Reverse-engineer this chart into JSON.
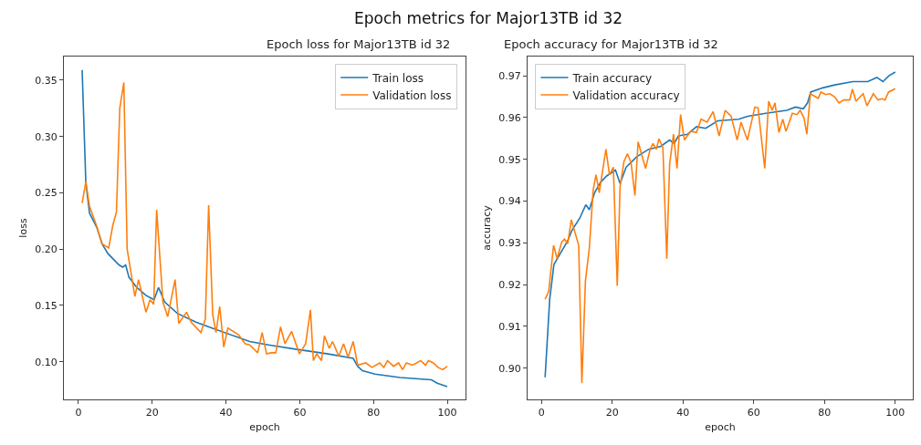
{
  "chart_data": [
    {
      "type": "line",
      "title": "Epoch loss for Major13TB id 32",
      "xlabel": "epoch",
      "ylabel": "loss",
      "annotations": [
        "Epoch metrics for Major13TB id 32"
      ],
      "series": [
        {
          "name": "Train loss",
          "color": "#1f77b4",
          "x": [
            1,
            2,
            3,
            5,
            6.5,
            8,
            11,
            12,
            12.8,
            13.7,
            15.8,
            18.3,
            20.5,
            21.7,
            23.4,
            26.8,
            32,
            36.2,
            43,
            46.4,
            51.5,
            59.2,
            67.7,
            74.5,
            75.7,
            77,
            80.4,
            87.2,
            95.7,
            97.3,
            100
          ],
          "values": [
            0.359,
            0.259,
            0.232,
            0.219,
            0.204,
            0.196,
            0.186,
            0.184,
            0.186,
            0.175,
            0.166,
            0.159,
            0.155,
            0.166,
            0.153,
            0.143,
            0.135,
            0.13,
            0.122,
            0.118,
            0.115,
            0.111,
            0.107,
            0.103,
            0.096,
            0.092,
            0.089,
            0.086,
            0.084,
            0.081,
            0.078
          ]
        },
        {
          "name": "Validation loss",
          "color": "#ff7f0e",
          "x": [
            1,
            2,
            3,
            5,
            6.3,
            8.2,
            9.3,
            10.3,
            11.2,
            12.3,
            13.2,
            15.3,
            16.3,
            18.3,
            19.4,
            20.4,
            21.2,
            22.9,
            24.2,
            26.2,
            27.2,
            29.3,
            30.6,
            33.2,
            34.4,
            35.3,
            36.4,
            37.3,
            38.3,
            39.4,
            40.5,
            43.4,
            45.2,
            46.4,
            48.6,
            49.8,
            51,
            52.2,
            53.5,
            54.8,
            56,
            57.8,
            59.9,
            61.6,
            62.9,
            63.7,
            64.6,
            65.9,
            66.7,
            68,
            68.9,
            70.6,
            71.9,
            73.1,
            74.5,
            75.7,
            77.9,
            79.6,
            81.7,
            82.8,
            83.8,
            85.4,
            86.8,
            87.9,
            88.9,
            90.6,
            92.8,
            94.1,
            94.9,
            96.2,
            97.5,
            98.8,
            100
          ],
          "values": [
            0.241,
            0.26,
            0.238,
            0.22,
            0.205,
            0.201,
            0.221,
            0.233,
            0.325,
            0.348,
            0.2,
            0.158,
            0.173,
            0.144,
            0.155,
            0.151,
            0.235,
            0.153,
            0.14,
            0.173,
            0.134,
            0.144,
            0.135,
            0.126,
            0.138,
            0.239,
            0.142,
            0.126,
            0.149,
            0.113,
            0.13,
            0.124,
            0.116,
            0.115,
            0.108,
            0.126,
            0.107,
            0.108,
            0.108,
            0.131,
            0.116,
            0.127,
            0.107,
            0.116,
            0.146,
            0.101,
            0.107,
            0.101,
            0.123,
            0.112,
            0.118,
            0.105,
            0.116,
            0.104,
            0.118,
            0.097,
            0.099,
            0.095,
            0.099,
            0.095,
            0.101,
            0.096,
            0.099,
            0.093,
            0.099,
            0.097,
            0.101,
            0.097,
            0.101,
            0.099,
            0.095,
            0.093,
            0.096
          ]
        }
      ],
      "xlim": [
        -3.95,
        104.95
      ],
      "xticks": [
        0,
        20,
        40,
        60,
        80,
        100
      ],
      "ylim": [
        0.0666,
        0.371
      ],
      "yticks": [
        {
          "value": 0.1,
          "label": "0.10"
        },
        0.15,
        {
          "value": 0.2,
          "label": "0.20"
        },
        0.25,
        {
          "value": 0.3,
          "label": "0.30"
        },
        0.35
      ],
      "legend": "top right",
      "marker": "none",
      "line_style": "solid"
    },
    {
      "type": "line",
      "title": "Epoch accuracy for Major13TB id 32",
      "xlabel": "epoch",
      "ylabel": "accuracy",
      "series": [
        {
          "name": "Train accuracy",
          "color": "#1f77b4",
          "x": [
            1,
            2.3,
            3.5,
            5.2,
            7.4,
            8.6,
            10.8,
            12.5,
            13.5,
            15,
            16.7,
            18.4,
            20.9,
            22.2,
            23.9,
            26.9,
            30.3,
            33.7,
            36.2,
            37.5,
            38.7,
            41.3,
            43.8,
            46.4,
            49.8,
            55.7,
            58.3,
            63.4,
            69.3,
            71.8,
            74,
            75.2,
            76.1,
            79.5,
            82.9,
            88,
            92.2,
            94.8,
            96.5,
            98.2,
            100
          ],
          "values": [
            0.8978,
            0.9165,
            0.9248,
            0.9273,
            0.9305,
            0.933,
            0.9359,
            0.9391,
            0.9379,
            0.942,
            0.9445,
            0.946,
            0.9474,
            0.9442,
            0.9481,
            0.9506,
            0.9524,
            0.9531,
            0.9546,
            0.9538,
            0.9556,
            0.956,
            0.9578,
            0.9574,
            0.9592,
            0.9596,
            0.9603,
            0.961,
            0.9617,
            0.9625,
            0.9621,
            0.9635,
            0.9661,
            0.9671,
            0.9678,
            0.9686,
            0.9686,
            0.9696,
            0.9686,
            0.97,
            0.9709
          ]
        },
        {
          "name": "Validation accuracy",
          "color": "#ff7f0e",
          "x": [
            1,
            2,
            3.4,
            4.4,
            5.7,
            6.5,
            7.4,
            8.4,
            10.5,
            11.4,
            12.4,
            13.5,
            14.6,
            15.4,
            16.3,
            18.2,
            19.2,
            20.3,
            21.4,
            22.2,
            23.3,
            24.3,
            25.3,
            26.4,
            27.3,
            29.4,
            30.7,
            31.5,
            32.4,
            33.2,
            34.3,
            35.4,
            36.2,
            37.3,
            38.3,
            39.3,
            40.4,
            42.1,
            43.8,
            45.1,
            46.8,
            48.5,
            50.2,
            51.9,
            53.6,
            55.3,
            56.4,
            58.2,
            60.3,
            61.2,
            63.1,
            64.2,
            65.2,
            66,
            67.1,
            68.2,
            69.1,
            70.9,
            72.2,
            73.1,
            74.2,
            75,
            76,
            78.2,
            79,
            80.3,
            81.5,
            82.8,
            84.1,
            85.4,
            87.1,
            87.9,
            88.9,
            90.9,
            92,
            93.8,
            95.1,
            96.4,
            97.1,
            98.1,
            100
          ],
          "values": [
            0.9165,
            0.9183,
            0.9294,
            0.9262,
            0.9302,
            0.9309,
            0.9298,
            0.9355,
            0.9294,
            0.8964,
            0.9208,
            0.9287,
            0.9427,
            0.9463,
            0.942,
            0.9524,
            0.9463,
            0.9481,
            0.9197,
            0.9434,
            0.9495,
            0.9513,
            0.9492,
            0.9413,
            0.9542,
            0.9478,
            0.9524,
            0.9538,
            0.9524,
            0.9549,
            0.9528,
            0.9262,
            0.9488,
            0.956,
            0.9478,
            0.9607,
            0.9546,
            0.9567,
            0.9564,
            0.9596,
            0.9589,
            0.9614,
            0.9556,
            0.9617,
            0.9603,
            0.9546,
            0.9589,
            0.9546,
            0.9625,
            0.9623,
            0.9478,
            0.9639,
            0.9617,
            0.9635,
            0.9564,
            0.9596,
            0.9567,
            0.961,
            0.9607,
            0.9617,
            0.9599,
            0.956,
            0.9657,
            0.9646,
            0.9661,
            0.9655,
            0.9657,
            0.965,
            0.9635,
            0.9642,
            0.9642,
            0.9668,
            0.9639,
            0.9657,
            0.9628,
            0.9657,
            0.9642,
            0.9645,
            0.9642,
            0.9661,
            0.9669
          ]
        }
      ],
      "xlim": [
        -3.95,
        104.95
      ],
      "xticks": [
        0,
        20,
        40,
        60,
        80,
        100
      ],
      "ylim": [
        0.8925,
        0.9746
      ],
      "yticks": [
        {
          "value": 0.9,
          "label": "0.90"
        },
        0.91,
        0.92,
        0.93,
        0.94,
        0.95,
        0.96,
        0.97
      ],
      "legend": "top left",
      "marker": "none",
      "line_style": "solid"
    }
  ]
}
